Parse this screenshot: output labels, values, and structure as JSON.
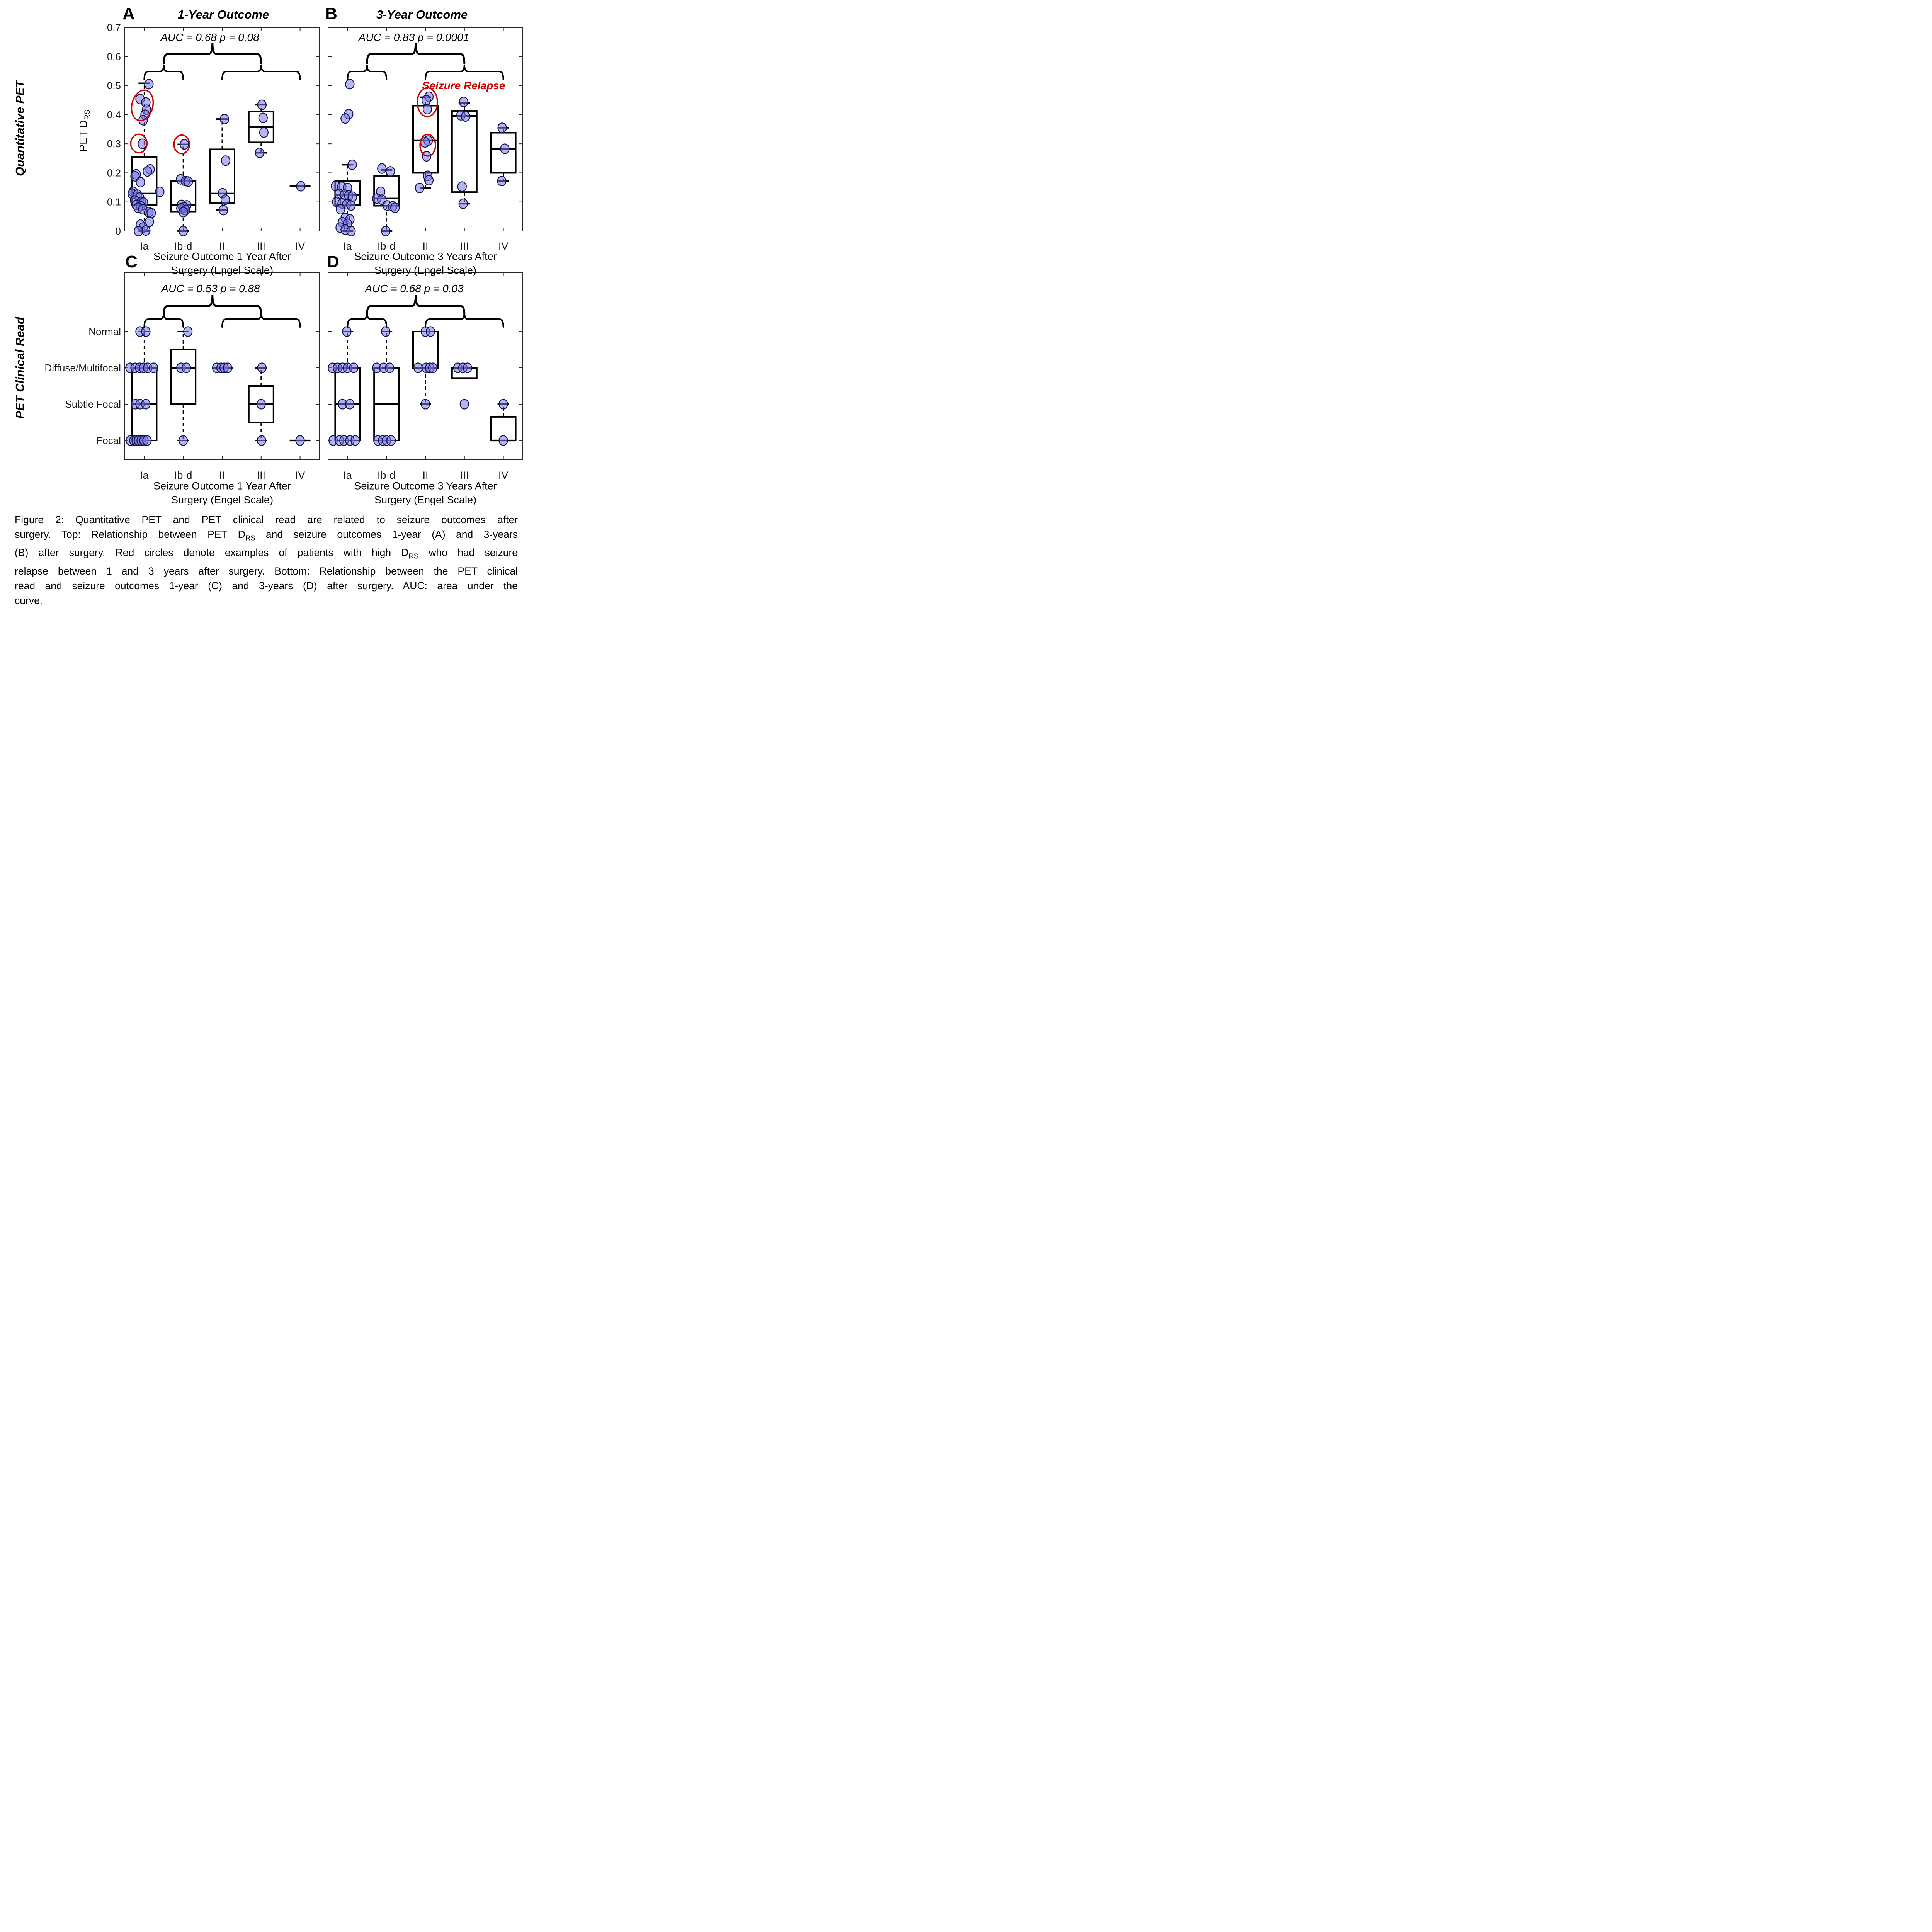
{
  "figure": {
    "row1_label": "Quantitative PET",
    "row2_label": "PET Clinical Read",
    "caption_lines": [
      [
        {
          "t": "Figure 2: Quantitative PET and PET clinical read are related to seizure outcomes after"
        }
      ],
      [
        {
          "t": "surgery. Top: Relationship between PET D"
        },
        {
          "t": "RS",
          "sub": true
        },
        {
          "t": " and seizure outcomes 1-year (A) and 3-years"
        }
      ],
      [
        {
          "t": "(B) after surgery. Red circles denote examples of patients with high D"
        },
        {
          "t": "RS",
          "sub": true
        },
        {
          "t": " who had seizure"
        }
      ],
      [
        {
          "t": "relapse between 1 and 3 years after surgery. Bottom: Relationship between the PET clinical"
        }
      ],
      [
        {
          "t": "read and seizure outcomes 1-year (C) and 3-years (D) after surgery. AUC: area under the"
        }
      ],
      [
        {
          "t": "curve."
        }
      ]
    ],
    "colors": {
      "marker_fill": "#7878e8",
      "marker_edge": "#10104a",
      "red": "#d40000",
      "line": "#000000",
      "frame": "#262626"
    }
  },
  "chart_data": [
    {
      "id": "A",
      "letter": "A",
      "type": "box-scatter",
      "title": "1-Year Outcome",
      "auc_text": "AUC = 0.68 p = 0.08",
      "ylabel": "PET D",
      "ylabel_sub": "RS",
      "ylim": [
        0,
        0.7
      ],
      "yticks": [
        0,
        0.1,
        0.2,
        0.3,
        0.4,
        0.5,
        0.6,
        0.7
      ],
      "ytick_labels": [
        "0",
        "0.1",
        "0.2",
        "0.3",
        "0.4",
        "0.5",
        "0.6",
        "0.7"
      ],
      "categories": [
        "Ia",
        "Ib-d",
        "II",
        "III",
        "IV"
      ],
      "xlabel_line1": "Seizure Outcome 1 Year After",
      "xlabel_line2": "Surgery (Engel Scale)",
      "groups": [
        {
          "cat": "Ia",
          "box": {
            "q1": 0.089,
            "med": 0.129,
            "q3": 0.255,
            "wlo": 0,
            "whi": 0.508
          },
          "points": [
            [
              12,
              0.505
            ],
            [
              -11,
              0.454
            ],
            [
              4,
              0.442
            ],
            [
              6,
              0.417
            ],
            [
              2,
              0.4
            ],
            [
              -3,
              0.381
            ],
            [
              -5,
              0.3
            ],
            [
              15,
              0.212
            ],
            [
              8,
              0.205
            ],
            [
              -21,
              0.195
            ],
            [
              -24,
              0.188
            ],
            [
              -10,
              0.168
            ],
            [
              -29,
              0.135
            ],
            [
              40,
              0.135
            ],
            [
              -31,
              0.128
            ],
            [
              -18,
              0.125
            ],
            [
              -12,
              0.115
            ],
            [
              -25,
              0.105
            ],
            [
              -8,
              0.1
            ],
            [
              -2,
              0.098
            ],
            [
              -21,
              0.09
            ],
            [
              -9,
              0.085
            ],
            [
              -16,
              0.08
            ],
            [
              -4,
              0.075
            ],
            [
              12,
              0.065
            ],
            [
              18,
              0.062
            ],
            [
              13,
              0.032
            ],
            [
              -10,
              0.022
            ],
            [
              -3,
              0.012
            ],
            [
              4,
              0.002
            ],
            [
              -15,
              0
            ]
          ]
        },
        {
          "cat": "Ib-d",
          "box": {
            "q1": 0.067,
            "med": 0.089,
            "q3": 0.172,
            "wlo": 0,
            "whi": 0.298
          },
          "points": [
            [
              3,
              0.298
            ],
            [
              -7,
              0.178
            ],
            [
              6,
              0.172
            ],
            [
              13,
              0.17
            ],
            [
              -4,
              0.09
            ],
            [
              9,
              0.088
            ],
            [
              2,
              0.082
            ],
            [
              -6,
              0.078
            ],
            [
              6,
              0.072
            ],
            [
              0,
              0.065
            ],
            [
              0,
              0
            ]
          ]
        },
        {
          "cat": "II",
          "box": {
            "q1": 0.096,
            "med": 0.129,
            "q3": 0.281,
            "wlo": 0.072,
            "whi": 0.385
          },
          "points": [
            [
              6,
              0.385
            ],
            [
              9,
              0.242
            ],
            [
              1,
              0.13
            ],
            [
              8,
              0.108
            ],
            [
              3,
              0.072
            ]
          ]
        },
        {
          "cat": "III",
          "box": {
            "q1": 0.305,
            "med": 0.358,
            "q3": 0.411,
            "wlo": 0.269,
            "whi": 0.434
          },
          "points": [
            [
              2,
              0.434
            ],
            [
              5,
              0.389
            ],
            [
              7,
              0.339
            ],
            [
              -4,
              0.269
            ]
          ]
        },
        {
          "cat": "IV",
          "box": {
            "med_only": 0.154
          },
          "points": [
            [
              2,
              0.154
            ]
          ]
        }
      ],
      "red_ellipses": [
        {
          "cat": 1,
          "dx": -5,
          "v": 0.432,
          "rx": 27,
          "ry": 40,
          "rot": 14
        },
        {
          "cat": 1,
          "dx": -14,
          "v": 0.301,
          "rx": 21,
          "ry": 24,
          "rot": 0
        },
        {
          "cat": 2,
          "dx": -4,
          "v": 0.298,
          "rx": 20,
          "ry": 24,
          "rot": 0
        }
      ]
    },
    {
      "id": "B",
      "letter": "B",
      "type": "box-scatter",
      "title": "3-Year Outcome",
      "auc_text": "AUC = 0.83 p = 0.0001",
      "ylim": [
        0,
        0.7
      ],
      "yticks": [
        0,
        0.1,
        0.2,
        0.3,
        0.4,
        0.5,
        0.6,
        0.7
      ],
      "ytick_labels": [],
      "categories": [
        "Ia",
        "Ib-d",
        "II",
        "III",
        "IV"
      ],
      "xlabel_line1": "Seizure Outcome 3 Years After",
      "xlabel_line2": "Surgery (Engel Scale)",
      "annotation": {
        "text": "Seizure Relapse"
      },
      "groups": [
        {
          "cat": "Ia",
          "box": {
            "q1": 0.09,
            "med": 0.125,
            "q3": 0.172,
            "wlo": 0,
            "whi": 0.228
          },
          "points": [
            [
              6,
              0.505
            ],
            [
              3,
              0.402
            ],
            [
              -6,
              0.387
            ],
            [
              12,
              0.228
            ],
            [
              -31,
              0.155
            ],
            [
              -15,
              0.152
            ],
            [
              0,
              0.148
            ],
            [
              -22,
              0.128
            ],
            [
              -8,
              0.125
            ],
            [
              3,
              0.122
            ],
            [
              13,
              0.118
            ],
            [
              -28,
              0.1
            ],
            [
              -14,
              0.095
            ],
            [
              -2,
              0.092
            ],
            [
              9,
              0.088
            ],
            [
              -18,
              0.075
            ],
            [
              -6,
              0.045
            ],
            [
              6,
              0.04
            ],
            [
              -13,
              0.03
            ],
            [
              0,
              0.025
            ],
            [
              -19,
              0.012
            ],
            [
              -6,
              0.005
            ],
            [
              9,
              0
            ]
          ]
        },
        {
          "cat": "Ib-d",
          "box": {
            "q1": 0.087,
            "med": 0.112,
            "q3": 0.19,
            "wlo": 0,
            "whi": 0.21
          },
          "points": [
            [
              -12,
              0.215
            ],
            [
              10,
              0.205
            ],
            [
              -15,
              0.135
            ],
            [
              -25,
              0.112
            ],
            [
              -12,
              0.108
            ],
            [
              2,
              0.088
            ],
            [
              16,
              0.085
            ],
            [
              22,
              0.08
            ],
            [
              -2,
              0
            ]
          ]
        },
        {
          "cat": "II",
          "box": {
            "q1": 0.2,
            "med": 0.311,
            "q3": 0.431,
            "wlo": 0.148,
            "whi": 0.46
          },
          "points": [
            [
              9,
              0.462
            ],
            [
              2,
              0.45
            ],
            [
              5,
              0.419
            ],
            [
              7,
              0.311
            ],
            [
              -1,
              0.305
            ],
            [
              3,
              0.257
            ],
            [
              6,
              0.19
            ],
            [
              9,
              0.175
            ],
            [
              -15,
              0.148
            ]
          ]
        },
        {
          "cat": "III",
          "box": {
            "q1": 0.134,
            "med": 0.396,
            "q3": 0.413,
            "wlo": 0.094,
            "whi": 0.44
          },
          "points": [
            [
              -2,
              0.444
            ],
            [
              -9,
              0.398
            ],
            [
              3,
              0.394
            ],
            [
              -6,
              0.153
            ],
            [
              -3,
              0.094
            ]
          ]
        },
        {
          "cat": "IV",
          "box": {
            "q1": 0.2,
            "med": 0.283,
            "q3": 0.338,
            "wlo": 0.172,
            "whi": 0.355
          },
          "points": [
            [
              -3,
              0.355
            ],
            [
              4,
              0.283
            ],
            [
              -4,
              0.172
            ]
          ]
        }
      ],
      "red_ellipses": [
        {
          "cat": 3,
          "dx": 5,
          "v": 0.443,
          "rx": 26,
          "ry": 37,
          "rot": 0
        },
        {
          "cat": 3,
          "dx": 6,
          "v": 0.295,
          "rx": 20,
          "ry": 28,
          "rot": 0
        }
      ]
    },
    {
      "id": "C",
      "letter": "C",
      "type": "box-scatter",
      "title": "",
      "auc_text": "AUC = 0.53 p = 0.88",
      "ycats": [
        "Focal",
        "Subtle Focal",
        "Diffuse/Multifocal",
        "Normal"
      ],
      "show_ycat_labels": true,
      "categories": [
        "Ia",
        "Ib-d",
        "II",
        "III",
        "IV"
      ],
      "xlabel_line1": "Seizure Outcome 1 Year After",
      "xlabel_line2": "Surgery (Engel Scale)",
      "groups": [
        {
          "cat": "Ia",
          "box": {
            "q1": 1,
            "med": 2,
            "q3": 3,
            "whi": 4
          },
          "points": [
            [
              -11,
              4
            ],
            [
              4,
              4
            ],
            [
              -37,
              3
            ],
            [
              -24,
              3
            ],
            [
              -12,
              3
            ],
            [
              -2,
              3
            ],
            [
              9,
              3
            ],
            [
              24,
              3
            ],
            [
              -23,
              2
            ],
            [
              -11,
              2
            ],
            [
              4,
              2
            ],
            [
              -36,
              1
            ],
            [
              -27,
              1
            ],
            [
              -21,
              1
            ],
            [
              -15,
              1
            ],
            [
              -8,
              1
            ],
            [
              -1,
              1
            ],
            [
              7,
              1
            ]
          ]
        },
        {
          "cat": "Ib-d",
          "box": {
            "q1": 2,
            "med": 3,
            "q3": 3.5,
            "wlo": 1,
            "whi": 4
          },
          "points": [
            [
              12,
              4
            ],
            [
              -6,
              3
            ],
            [
              8,
              3
            ],
            [
              0,
              1
            ]
          ]
        },
        {
          "cat": "II",
          "box": {
            "med_only": 3
          },
          "points": [
            [
              -14,
              3
            ],
            [
              -3,
              3
            ],
            [
              5,
              3
            ],
            [
              14,
              3
            ]
          ]
        },
        {
          "cat": "III",
          "box": {
            "q1": 1.5,
            "med": 2,
            "q3": 2.5,
            "wlo": 1,
            "whi": 3
          },
          "points": [
            [
              2,
              3
            ],
            [
              0,
              2
            ],
            [
              1,
              1
            ]
          ]
        },
        {
          "cat": "IV",
          "box": {
            "med_only": 1
          },
          "points": [
            [
              0,
              1
            ]
          ]
        }
      ]
    },
    {
      "id": "D",
      "letter": "D",
      "type": "box-scatter",
      "title": "",
      "auc_text": "AUC = 0.68 p = 0.03",
      "ycats": [
        "Focal",
        "Subtle Focal",
        "Diffuse/Multifocal",
        "Normal"
      ],
      "show_ycat_labels": false,
      "categories": [
        "Ia",
        "Ib-d",
        "II",
        "III",
        "IV"
      ],
      "xlabel_line1": "Seizure Outcome 3 Years After",
      "xlabel_line2": "Surgery (Engel Scale)",
      "groups": [
        {
          "cat": "Ia",
          "box": {
            "q1": 1,
            "med": 2,
            "q3": 3,
            "whi": 4
          },
          "points": [
            [
              -2,
              4
            ],
            [
              -39,
              3
            ],
            [
              -26,
              3
            ],
            [
              -13,
              3
            ],
            [
              0,
              3
            ],
            [
              16,
              3
            ],
            [
              -13,
              2
            ],
            [
              6,
              2
            ],
            [
              -37,
              1
            ],
            [
              -21,
              1
            ],
            [
              -9,
              1
            ],
            [
              6,
              1
            ],
            [
              20,
              1
            ]
          ]
        },
        {
          "cat": "Ib-d",
          "box": {
            "q1": 1,
            "med": 2,
            "q3": 3,
            "whi": 4
          },
          "points": [
            [
              -2,
              4
            ],
            [
              -25,
              3
            ],
            [
              -7,
              3
            ],
            [
              8,
              3
            ],
            [
              -22,
              1
            ],
            [
              -10,
              1
            ],
            [
              0,
              1
            ],
            [
              12,
              1
            ]
          ]
        },
        {
          "cat": "II",
          "box": {
            "q1": 3,
            "med": 3,
            "q3": 4,
            "wlo": 2
          },
          "points": [
            [
              0,
              4
            ],
            [
              13,
              4
            ],
            [
              -19,
              3
            ],
            [
              2,
              3
            ],
            [
              11,
              3
            ],
            [
              19,
              3
            ],
            [
              0,
              2
            ]
          ]
        },
        {
          "cat": "III",
          "box": {
            "q1": 2.72,
            "med": 3,
            "q3": 3
          },
          "points": [
            [
              -17,
              3
            ],
            [
              -4,
              3
            ],
            [
              8,
              3
            ],
            [
              0,
              2
            ]
          ]
        },
        {
          "cat": "IV",
          "box": {
            "q1": 1,
            "med": 1,
            "q3": 1.65,
            "whi": 2
          },
          "points": [
            [
              0,
              2
            ],
            [
              0,
              1
            ]
          ]
        }
      ]
    }
  ]
}
